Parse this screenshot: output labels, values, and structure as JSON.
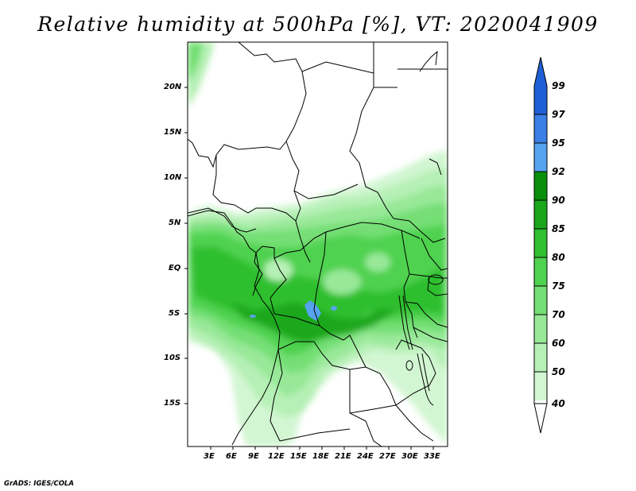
{
  "title": "Relative humidity at 500hPa [%], VT: 2020041909",
  "credit": "GrADS: IGES/COLA",
  "map": {
    "lon_labels": [
      "3E",
      "6E",
      "9E",
      "12E",
      "15E",
      "18E",
      "21E",
      "24E",
      "27E",
      "30E",
      "33E"
    ],
    "lat_labels": [
      "20N",
      "15N",
      "10N",
      "5N",
      "EQ",
      "5S",
      "10S",
      "15S"
    ]
  },
  "colorbar": {
    "levels": [
      "99",
      "97",
      "95",
      "92",
      "90",
      "85",
      "80",
      "75",
      "70",
      "60",
      "50",
      "40"
    ],
    "colors": [
      "#1f5fd6",
      "#3a7fe6",
      "#56a3f0",
      "#0a8f0a",
      "#1aa81a",
      "#2fbf2f",
      "#4fd24f",
      "#74df74",
      "#98e898",
      "#b6f0b6",
      "#d2f6d2",
      "#ebfbeb"
    ]
  }
}
